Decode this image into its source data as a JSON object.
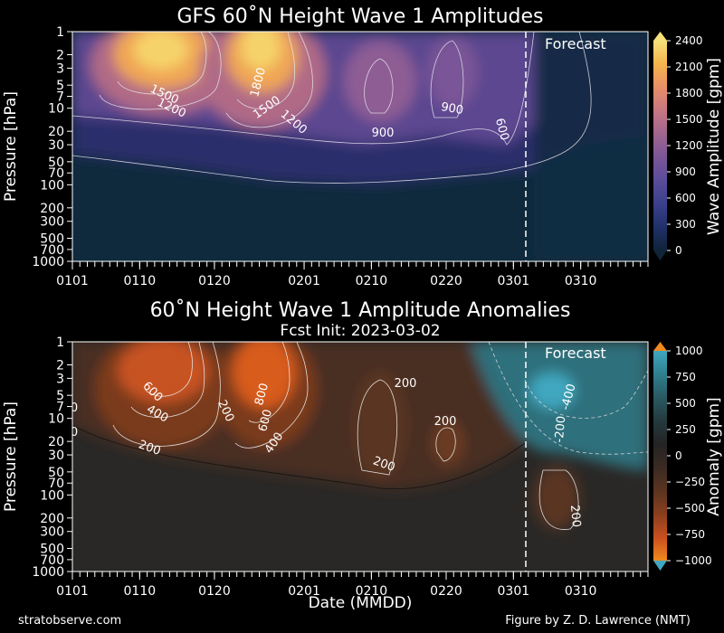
{
  "chart_data": [
    {
      "type": "heatmap",
      "title": "GFS 60˚N Height Wave 1 Amplitudes",
      "subtitle": "",
      "xlabel": "",
      "ylabel": "Pressure [hPa]",
      "x_tick_labels": [
        "0101",
        "0110",
        "0120",
        "0201",
        "0210",
        "0220",
        "0301",
        "0310"
      ],
      "y_tick_labels": [
        "1",
        "2",
        "3",
        "5",
        "7",
        "10",
        "20",
        "30",
        "50",
        "70",
        "100",
        "200",
        "300",
        "500",
        "700",
        "1000"
      ],
      "y_scale": "log",
      "ylim": [
        1000,
        1
      ],
      "xlim": [
        "2023-01-01",
        "2023-03-19"
      ],
      "forecast_start": "2023-03-02",
      "forecast_label": "Forecast",
      "colorbar": {
        "label": "Wave Amplitude [gpm]",
        "ticks": [
          "0",
          "300",
          "600",
          "900",
          "1200",
          "1500",
          "1800",
          "2100",
          "2400"
        ],
        "range": [
          0,
          2400
        ],
        "colors": [
          "#0f2438",
          "#20306a",
          "#3a3f8c",
          "#5b4d9a",
          "#7b5597",
          "#a06590",
          "#c87682",
          "#e88e68",
          "#f6b44c",
          "#f7e079"
        ]
      },
      "contour_labels": [
        "1500",
        "1200",
        "1800",
        "1500",
        "1200",
        "900",
        "900",
        "600"
      ],
      "features": [
        {
          "name": "early January maximum",
          "x": "2023-01-11",
          "y_hPa": 2,
          "value": 2200
        },
        {
          "name": "late January maximum",
          "x": "2023-01-25",
          "y_hPa": 2.5,
          "value": 2300
        },
        {
          "name": "mid February secondary maximum",
          "x": "2023-02-12",
          "y_hPa": 5,
          "value": 1100
        },
        {
          "name": "late February secondary maximum",
          "x": "2023-02-23",
          "y_hPa": 8,
          "value": 900
        }
      ]
    },
    {
      "type": "heatmap",
      "title": "60˚N Height Wave 1 Amplitude Anomalies",
      "subtitle": "Fcst Init: 2023-03-02",
      "xlabel": "Date (MMDD)",
      "ylabel": "Pressure [hPa]",
      "x_tick_labels": [
        "0101",
        "0110",
        "0120",
        "0201",
        "0210",
        "0220",
        "0301",
        "0310"
      ],
      "y_tick_labels": [
        "1",
        "2",
        "3",
        "5",
        "7",
        "10",
        "20",
        "30",
        "50",
        "70",
        "100",
        "200",
        "300",
        "500",
        "700",
        "1000"
      ],
      "y_scale": "log",
      "ylim": [
        1000,
        1
      ],
      "xlim": [
        "2023-01-01",
        "2023-03-19"
      ],
      "forecast_start": "2023-03-02",
      "forecast_label": "Forecast",
      "colorbar": {
        "label": "Anomaly [gpm]",
        "ticks": [
          "1000",
          "750",
          "500",
          "250",
          "0",
          "−250",
          "−500",
          "−750",
          "−1000"
        ],
        "range": [
          -1000,
          1000
        ],
        "colors": [
          "#3fa7c0",
          "#2f7f8f",
          "#2a5a62",
          "#243a3e",
          "#242424",
          "#3a2a22",
          "#5a3420",
          "#8a3e1e",
          "#c84f1e",
          "#f28a1e"
        ]
      },
      "contour_labels": [
        "600",
        "400",
        "200",
        "200",
        "800",
        "600",
        "400",
        "200",
        "200",
        "200",
        "200",
        "-200",
        "-400",
        "0",
        "0"
      ],
      "features": [
        {
          "name": "early January positive anomaly",
          "x": "2023-01-11",
          "y_hPa": 2.5,
          "value": 750
        },
        {
          "name": "late January positive anomaly",
          "x": "2023-01-25",
          "y_hPa": 3,
          "value": 900
        },
        {
          "name": "February positive anomaly",
          "x": "2023-02-10",
          "y_hPa": 8,
          "value": 300
        },
        {
          "name": "forecast negative anomaly",
          "x": "2023-03-06",
          "y_hPa": 5,
          "value": -450
        },
        {
          "name": "forecast positive anomaly",
          "x": "2023-03-07",
          "y_hPa": 100,
          "value": 250
        }
      ]
    }
  ],
  "footer": {
    "left": "stratobserve.com",
    "right": "Figure by Z. D. Lawrence (NMT)"
  }
}
